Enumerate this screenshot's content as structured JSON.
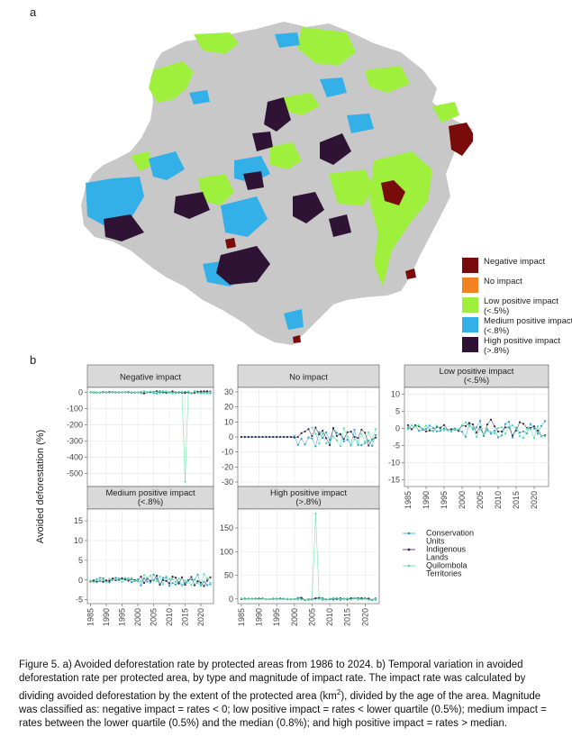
{
  "figure": {
    "panel_a_label": "a",
    "panel_b_label": "b"
  },
  "map": {
    "legend": [
      {
        "label": "Negative impact",
        "color": "#7a0b0b"
      },
      {
        "label": "No impact",
        "color": "#f58220"
      },
      {
        "label": "Low positive impact (<.5%)",
        "color": "#9ff03c"
      },
      {
        "label": "Medium positive impact (<.8%)",
        "color": "#33b0e8"
      },
      {
        "label": "High positive impact (>.8%)",
        "color": "#2e1335"
      }
    ],
    "land_color": "#c8c8c8"
  },
  "chart_data": [
    {
      "type": "line",
      "facet_title": "Negative impact",
      "xlim": [
        1984,
        2024
      ],
      "ylim": [
        -580,
        30
      ],
      "yticks": [
        0,
        -100,
        -200,
        -300,
        -400,
        -500
      ],
      "xticks": [],
      "spike": {
        "x": 2015,
        "y": -550
      }
    },
    {
      "type": "line",
      "facet_title": "No impact",
      "xlim": [
        1984,
        2024
      ],
      "ylim": [
        -33,
        33
      ],
      "yticks": [
        30,
        20,
        10,
        0,
        -10,
        -20,
        -30
      ],
      "xticks": []
    },
    {
      "type": "line",
      "facet_title": "Low positive impact (<.5%)",
      "xlim": [
        1984,
        2024
      ],
      "ylim": [
        -17,
        12
      ],
      "yticks": [
        10,
        5,
        0,
        -5,
        -10,
        -15
      ],
      "xticks": [
        1985,
        1990,
        1995,
        2000,
        2005,
        2010,
        2015,
        2020
      ]
    },
    {
      "type": "line",
      "facet_title": "Medium positive impact (<.8%)",
      "xlim": [
        1984,
        2024
      ],
      "ylim": [
        -6,
        18
      ],
      "yticks": [
        15,
        10,
        5,
        0,
        -5
      ],
      "xticks": [
        1985,
        1990,
        1995,
        2000,
        2005,
        2010,
        2015,
        2020
      ]
    },
    {
      "type": "line",
      "facet_title": "High positive impact (>.8%)",
      "xlim": [
        1984,
        2024
      ],
      "ylim": [
        -10,
        190
      ],
      "yticks": [
        150,
        100,
        50,
        0
      ],
      "xticks": [
        1985,
        1990,
        1995,
        2000,
        2005,
        2010,
        2015,
        2020
      ],
      "spike": {
        "x": 2006,
        "y": 180
      }
    }
  ],
  "chart_common": {
    "ylabel": "Avoided deforestation (%)",
    "series": [
      {
        "name": "Conservation Units",
        "color": "#2a9fd8"
      },
      {
        "name": "Indigenous Lands",
        "color": "#3a2a4a"
      },
      {
        "name": "Quilombola Territories",
        "color": "#52e0a0"
      }
    ],
    "legend_lines": [
      [
        "Conservation",
        "Units"
      ],
      [
        "Indigenous",
        "Lands"
      ],
      [
        "Quilombola",
        "Territories"
      ]
    ]
  },
  "caption": {
    "part1": "Figure 5. a) Avoided deforestation rate by protected areas from 1986 to 2024. b) Temporal variation in avoided deforestation rate per protected area, by type and magnitude of impact rate. The impact rate was calculated by dividing avoided deforestation by the extent of the protected area (km",
    "sup": "2",
    "part2": "), divided by the age of the area. Magnitude was classified as: negative impact = rates < 0; low positive impact = rates < lower quartile (0.5%); medium impact = rates between the lower quartile (0.5%) and the median (0.8%); and high positive impact = rates > median."
  }
}
